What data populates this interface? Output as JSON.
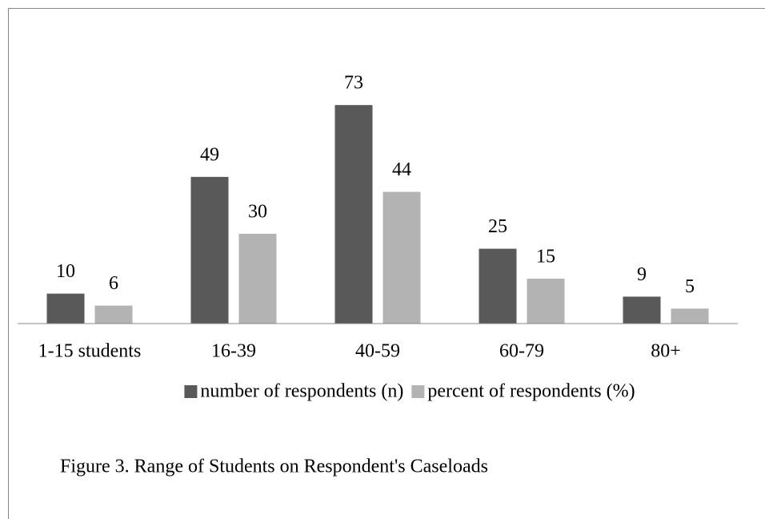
{
  "chart_data": {
    "type": "bar",
    "caption": "Figure 3. Range of Students on Respondent's Caseloads",
    "categories": [
      "1-15 students",
      "16-39",
      "40-59",
      "60-79",
      "80+"
    ],
    "series": [
      {
        "name": "number of respondents (n)",
        "color": "#595959",
        "values": [
          10,
          49,
          73,
          25,
          9
        ]
      },
      {
        "name": "percent of respondents (%)",
        "color": "#b3b3b3",
        "values": [
          6,
          30,
          44,
          15,
          5
        ]
      }
    ],
    "ylim": [
      0,
      80
    ],
    "legend": "bottom",
    "data_labels": true
  }
}
